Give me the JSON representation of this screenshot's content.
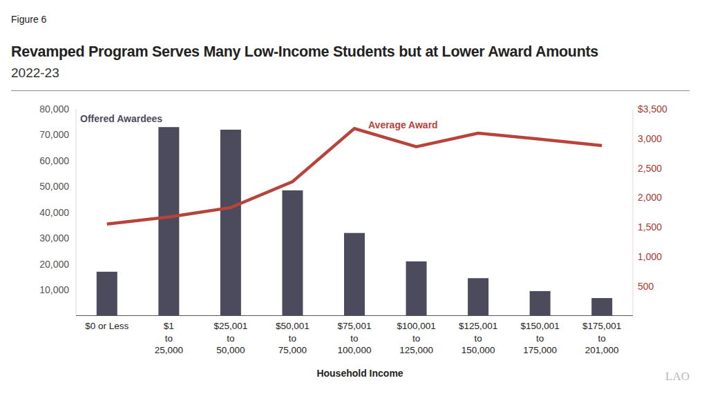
{
  "chart_data": {
    "type": "bar",
    "figure_label": "Figure 6",
    "title": "Revamped Program Serves Many Low-Income Students but at Lower Award Amounts",
    "subtitle": "2022-23",
    "x_label": "Household Income",
    "logo": "LAO",
    "categories": [
      "$0 or Less",
      "$1\nto\n25,000",
      "$25,001\nto\n50,000",
      "$50,001\nto\n75,000",
      "$75,001\nto\n100,000",
      "$100,001\nto\n125,000",
      "$125,001\nto\n150,000",
      "$150,001\nto\n175,000",
      "$175,001\nto\n201,000"
    ],
    "series": [
      {
        "name": "Offered Awardees",
        "type": "bar",
        "color": "#4b4b5d",
        "values": [
          17000,
          73000,
          72000,
          48500,
          32000,
          21000,
          14500,
          9500,
          6800
        ]
      },
      {
        "name": "Average Award",
        "type": "line",
        "color": "#b8433b",
        "axis": "y2",
        "values": [
          1550,
          1670,
          1830,
          2270,
          3170,
          2860,
          3090,
          2990,
          2880
        ]
      }
    ],
    "ylim": [
      0,
      80000
    ],
    "yticks": [
      {
        "value": 10000,
        "label": "10,000"
      },
      {
        "value": 20000,
        "label": "20,000"
      },
      {
        "value": 30000,
        "label": "30,000"
      },
      {
        "value": 40000,
        "label": "40,000"
      },
      {
        "value": 50000,
        "label": "50,000"
      },
      {
        "value": 60000,
        "label": "60,000"
      },
      {
        "value": 70000,
        "label": "70,000"
      },
      {
        "value": 80000,
        "label": "80,000"
      }
    ],
    "y2lim": [
      0,
      3500
    ],
    "y2ticks": [
      500,
      {
        "value": 1000,
        "label": "1,000"
      },
      {
        "value": 1500,
        "label": "1,500"
      },
      {
        "value": 2000,
        "label": "2,000"
      },
      {
        "value": 2500,
        "label": "2,500"
      },
      {
        "value": 3000,
        "label": "3,000"
      },
      {
        "value": 3500,
        "label": "$3,500"
      }
    ],
    "grid": false
  }
}
